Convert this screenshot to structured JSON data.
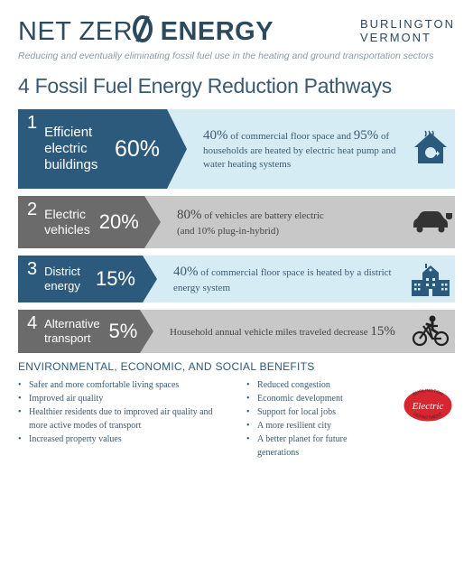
{
  "header": {
    "logo_pre": "NET ZER",
    "logo_post": " ENERGY",
    "loc_line1": "BURLINGTON",
    "loc_line2": "VERMONT",
    "tagline": "Reducing and eventually eliminating fossil fuel use in the heating and ground transportation sectors"
  },
  "main_title": "4 Fossil Fuel Energy Reduction Pathways",
  "colors": {
    "blue_dark": "#2c5a7c",
    "blue_light": "#d6ecf5",
    "grey_dark": "#6b6b6b",
    "grey_light": "#c8c8c8",
    "text_blue": "#3a5a73"
  },
  "pathways": [
    {
      "num": "1",
      "label": "Efficient\nelectric\nbuildings",
      "pct": "60%",
      "desc_html": "<span class='big'>40%</span> of commercial floor space and <span class='big'>95%</span> of households are heated by electric heat pump and water heating systems",
      "icon": "house-heat-icon"
    },
    {
      "num": "2",
      "label": "Electric\nvehicles",
      "pct": "20%",
      "desc_html": "<span class='big'>80%</span> of vehicles are battery electric<br>(and 10% plug-in-hybrid)",
      "icon": "car-plug-icon"
    },
    {
      "num": "3",
      "label": "District energy",
      "pct": "15%",
      "desc_html": "<span class='big'>40%</span> of commercial floor space is heated by a district energy system",
      "icon": "building-icon"
    },
    {
      "num": "4",
      "label": "Alternative\ntransport",
      "pct": "5%",
      "desc_html": "Household annual vehicle miles traveled decrease <span class='big'>15%</span>",
      "icon": "bicycle-icon"
    }
  ],
  "benefits_title": "ENVIRONMENTAL, ECONOMIC, AND SOCIAL BENEFITS",
  "benefits_col1": [
    "Safer and more comfortable living spaces",
    "Improved air quality",
    "Healthier residents due to improved air quality and more active modes of transport",
    "Increased property values"
  ],
  "benefits_col2": [
    "Reduced congestion",
    "Economic development",
    "Support for local jobs",
    "A more resilient city",
    "A better planet for future generations"
  ],
  "badge_text_top": "BURLINGTON",
  "badge_text_mid": "Electric",
  "badge_text_bot": "DEPARTMENT"
}
